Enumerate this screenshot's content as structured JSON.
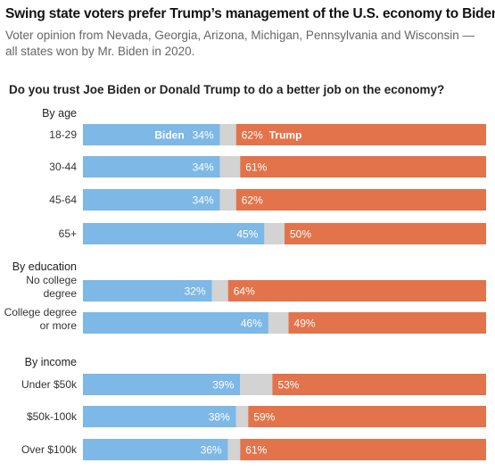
{
  "header": {
    "title": "Swing state voters prefer Trump’s management of the U.S. economy to Biden’s",
    "subtitle": "Voter opinion from Nevada, Georgia, Arizona, Michigan, Pennsylvania and Wisconsin — all states won by Mr. Biden in 2020.",
    "question": "Do you trust Joe Biden or Donald Trump to do a better job on the economy?"
  },
  "colors": {
    "biden": "#7db8e6",
    "trump": "#e3734b",
    "neither": "#d3d3d3"
  },
  "chart_data": {
    "type": "bar",
    "orientation": "horizontal",
    "stacked": true,
    "xlim": [
      0,
      100
    ],
    "series_names": [
      "Biden",
      "Trump"
    ],
    "groups": [
      {
        "label": "By age",
        "rows": [
          {
            "label": [
              "18-29"
            ],
            "biden": 34,
            "trump": 62,
            "show_names": true
          },
          {
            "label": [
              "30-44"
            ],
            "biden": 34,
            "trump": 61
          },
          {
            "label": [
              "45-64"
            ],
            "biden": 34,
            "trump": 62
          },
          {
            "label": [
              "65+"
            ],
            "biden": 45,
            "trump": 50
          }
        ]
      },
      {
        "label": "By education",
        "rows": [
          {
            "label": [
              "No college",
              "degree"
            ],
            "biden": 32,
            "trump": 64
          },
          {
            "label": [
              "College degree",
              "or more"
            ],
            "biden": 46,
            "trump": 49
          }
        ]
      },
      {
        "label": "By income",
        "rows": [
          {
            "label": [
              "Under $50k"
            ],
            "biden": 39,
            "trump": 53
          },
          {
            "label": [
              "$50k-100k"
            ],
            "biden": 38,
            "trump": 59
          },
          {
            "label": [
              "Over $100k"
            ],
            "biden": 36,
            "trump": 61
          }
        ]
      }
    ]
  }
}
